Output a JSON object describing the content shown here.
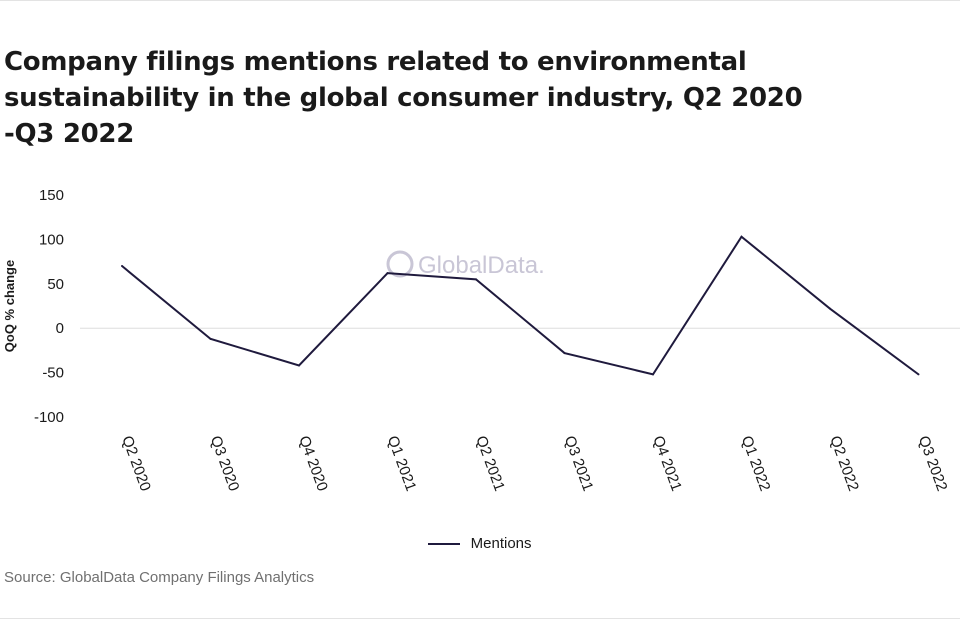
{
  "title": "Company filings mentions related to environmental sustainability in the global consumer industry, Q2 2020 -Q3 2022",
  "source": "Source: GlobalData Company Filings Analytics",
  "watermark": "GlobalData.",
  "colors": {
    "line": "#1f1a3d",
    "grid": "#dddddd",
    "text": "#1a1a1a"
  },
  "chart_data": {
    "type": "line",
    "categories": [
      "Q2 2020",
      "Q3 2020",
      "Q4 2020",
      "Q1 2021",
      "Q2 2021",
      "Q3 2021",
      "Q4 2021",
      "Q1 2022",
      "Q2 2022",
      "Q3 2022"
    ],
    "series": [
      {
        "name": "Mentions",
        "values": [
          70,
          -12,
          -42,
          62,
          55,
          -28,
          -52,
          103,
          22,
          -52
        ]
      }
    ],
    "ylabel": "QoQ % change",
    "xlabel": "",
    "yticks": [
      150,
      100,
      50,
      0,
      -50,
      -100
    ],
    "ylim": [
      -100,
      150
    ],
    "grid": "zero-line only",
    "legend": "bottom-center"
  }
}
